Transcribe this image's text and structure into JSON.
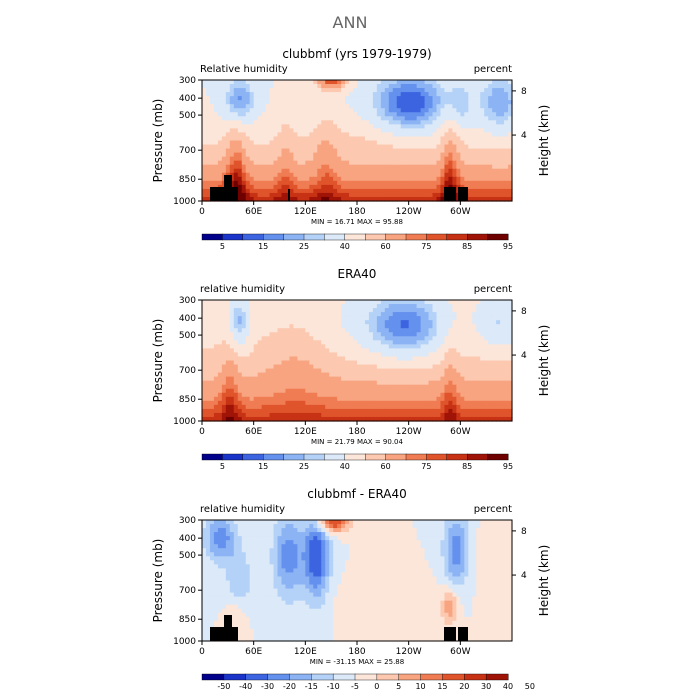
{
  "page_title": "ANN",
  "chart_data": [
    {
      "type": "heatmap",
      "title": "clubbmf (yrs 1979-1979)",
      "left_label": "Relative humidity",
      "right_label": "percent",
      "ylabel": "Pressure (mb)",
      "y2label": "Height (km)",
      "y_ticks": [
        "300",
        "400",
        "500",
        "700",
        "850",
        "1000"
      ],
      "y2_ticks": [
        "8",
        "4"
      ],
      "x_ticks": [
        "0",
        "60E",
        "120E",
        "180",
        "120W",
        "60W"
      ],
      "stats": {
        "min_label": "MIN =",
        "min": "16.71",
        "max_label": "MAX =",
        "max": "95.88"
      },
      "colorbar": {
        "colors": [
          "#00008b",
          "#1a33c8",
          "#3c64e0",
          "#6490ee",
          "#8cb4f4",
          "#b4d2f8",
          "#dce9f8",
          "#fce6da",
          "#fcc8b0",
          "#f8a480",
          "#f07c54",
          "#e0542c",
          "#c83214",
          "#a01408",
          "#6e0000"
        ],
        "labels": [
          "5",
          "15",
          "25",
          "40",
          "60",
          "75",
          "85",
          "95"
        ],
        "label_slots": [
          1,
          3,
          5,
          7,
          9,
          11,
          13,
          15
        ]
      },
      "field": {
        "kind": "model",
        "diff": false
      }
    },
    {
      "type": "heatmap",
      "title": "ERA40",
      "left_label": "relative humidity",
      "right_label": "percent",
      "ylabel": "Pressure (mb)",
      "y2label": "Height (km)",
      "y_ticks": [
        "300",
        "400",
        "500",
        "700",
        "850",
        "1000"
      ],
      "y2_ticks": [
        "8",
        "4"
      ],
      "x_ticks": [
        "0",
        "60E",
        "120E",
        "180",
        "120W",
        "60W"
      ],
      "stats": {
        "min_label": "MIN =",
        "min": "21.79",
        "max_label": "MAX =",
        "max": "90.04"
      },
      "colorbar": {
        "colors": [
          "#00008b",
          "#1a33c8",
          "#3c64e0",
          "#6490ee",
          "#8cb4f4",
          "#b4d2f8",
          "#dce9f8",
          "#fce6da",
          "#fcc8b0",
          "#f8a480",
          "#f07c54",
          "#e0542c",
          "#c83214",
          "#a01408",
          "#6e0000"
        ],
        "labels": [
          "5",
          "15",
          "25",
          "40",
          "60",
          "75",
          "85",
          "95"
        ],
        "label_slots": [
          1,
          3,
          5,
          7,
          9,
          11,
          13,
          15
        ]
      },
      "field": {
        "kind": "obs",
        "diff": false
      }
    },
    {
      "type": "heatmap",
      "title": "clubbmf - ERA40",
      "left_label": "relative humidity",
      "right_label": "percent",
      "ylabel": "Pressure (mb)",
      "y2label": "Height (km)",
      "y_ticks": [
        "300",
        "400",
        "500",
        "700",
        "850",
        "1000"
      ],
      "y2_ticks": [
        "8",
        "4"
      ],
      "x_ticks": [
        "0",
        "60E",
        "120E",
        "180",
        "120W",
        "60W"
      ],
      "stats": {
        "min_label": "MIN =",
        "min": "-31.15",
        "max_label": "MAX =",
        "max": "25.88"
      },
      "colorbar": {
        "colors": [
          "#00008b",
          "#1a33c8",
          "#3c64e0",
          "#6490ee",
          "#8cb4f4",
          "#b4d2f8",
          "#dce9f8",
          "#fce6da",
          "#fcc8b0",
          "#f8a480",
          "#f07c54",
          "#e0542c",
          "#c83214",
          "#a01408"
        ],
        "labels": [
          "-50",
          "-40",
          "-30",
          "-20",
          "-15",
          "-10",
          "-5",
          "0",
          "5",
          "10",
          "15",
          "20",
          "30",
          "40",
          "50"
        ],
        "label_slots": [
          0,
          1,
          2,
          3,
          4,
          5,
          6,
          7,
          8,
          9,
          10,
          11,
          12,
          13,
          14
        ]
      },
      "field": {
        "kind": "diff",
        "diff": true
      }
    }
  ]
}
